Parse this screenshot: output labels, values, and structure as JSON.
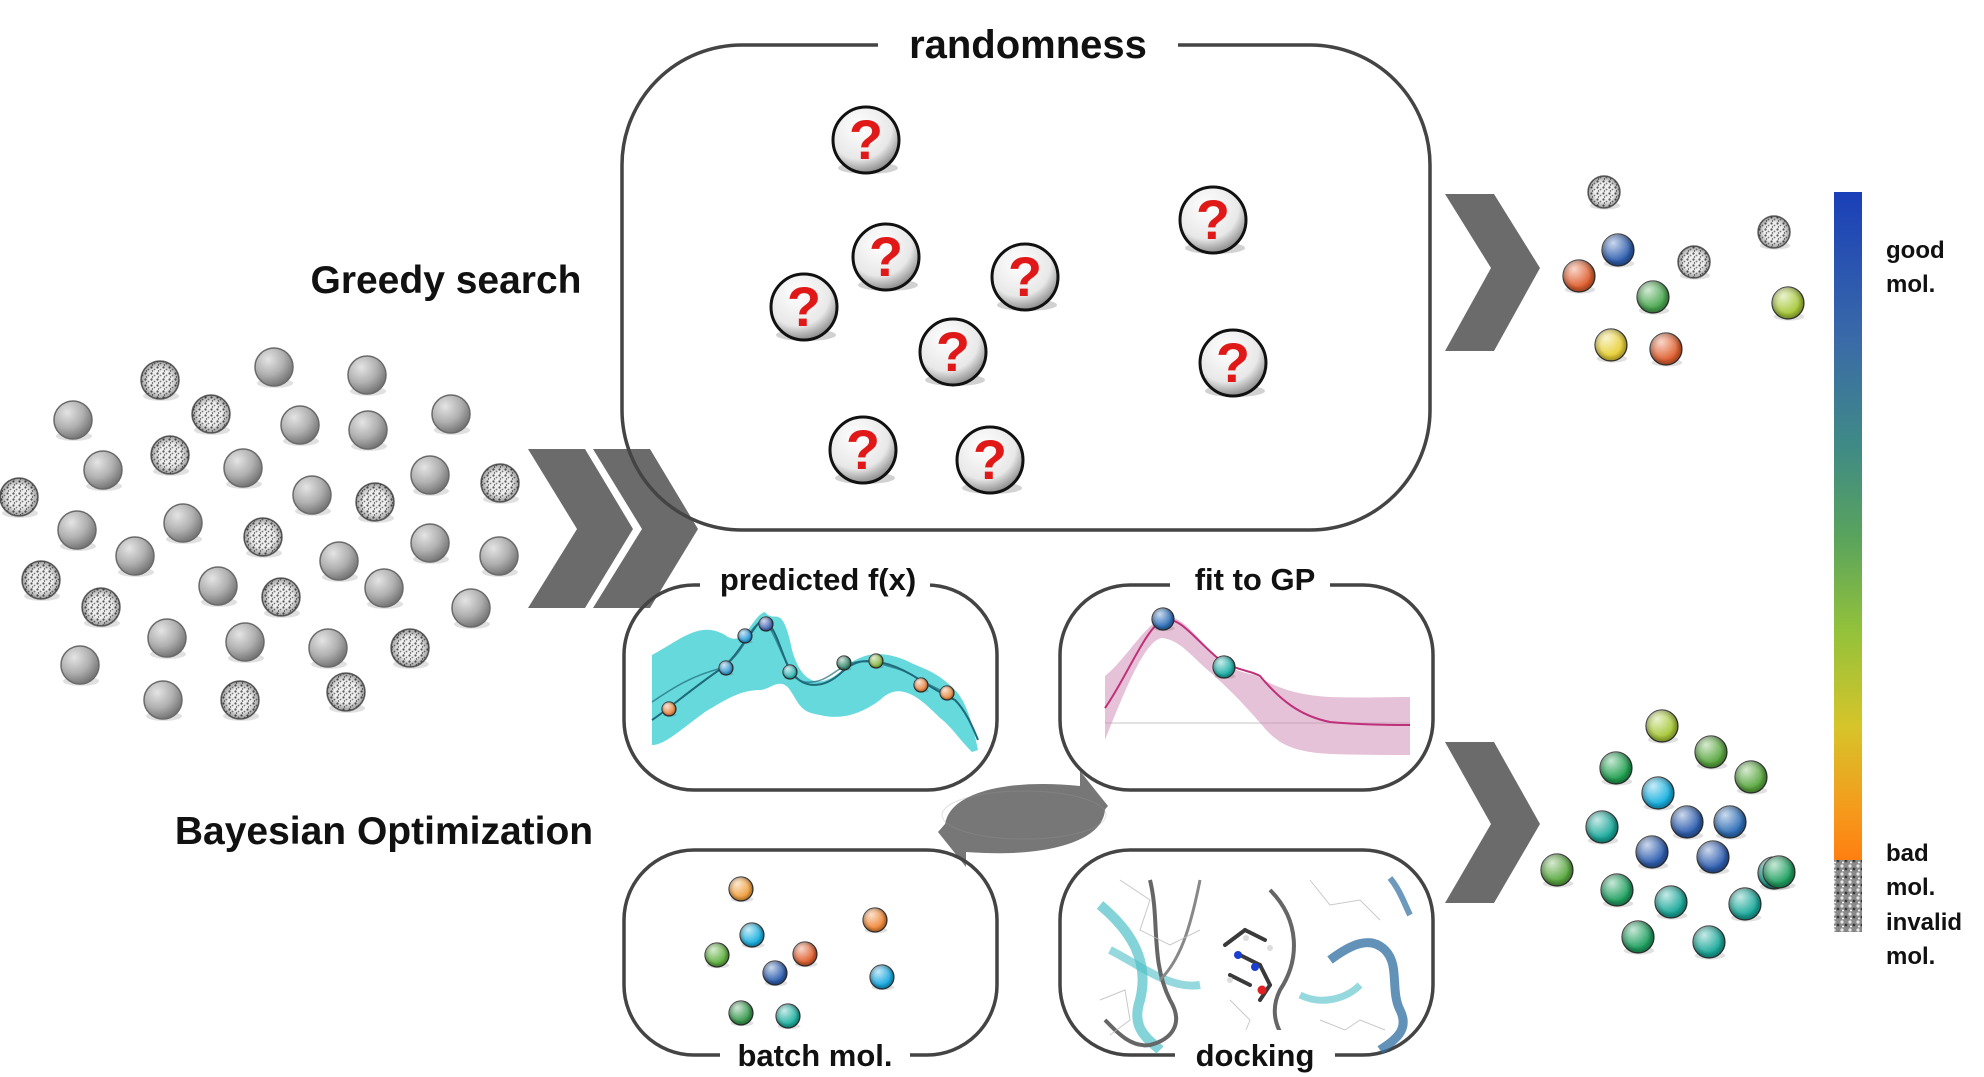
{
  "labels": {
    "randomness": "randomness",
    "greedy_search": "Greedy search",
    "bayesian_optimization": "Bayesian Optimization",
    "predicted_fx": "predicted f(x)",
    "fit_to_gp": "fit to GP",
    "batch_mol": "batch mol.",
    "docking": "docking",
    "question_mark": "?"
  },
  "colorbar": {
    "good_line1": "good",
    "good_line2": "mol.",
    "bad_line1": "bad",
    "bad_line2": "mol.",
    "invalid_line1": "invalid",
    "invalid_line2": "mol.",
    "gradient_colors": [
      "#1a3fb8",
      "#2f6fa8",
      "#3c8a8a",
      "#55a060",
      "#8cbf3c",
      "#c9c92a",
      "#f0a820",
      "#ff8010"
    ]
  },
  "colors": {
    "box_stroke": "#444444",
    "chevron": "#6b6b6b",
    "gray_molecule": "#b0b0b0",
    "cyan_band": "#40d0d4",
    "pink_band": "#d6a6c6",
    "question_red": "#e01818"
  },
  "icons": {
    "molecule": "sphere-icon",
    "invalid_molecule": "speckled-sphere-icon",
    "question": "question-mark-icon",
    "cycle": "cycle-arrows-icon",
    "chevron": "chevron-right-icon",
    "docking": "protein-ligand-icon"
  }
}
